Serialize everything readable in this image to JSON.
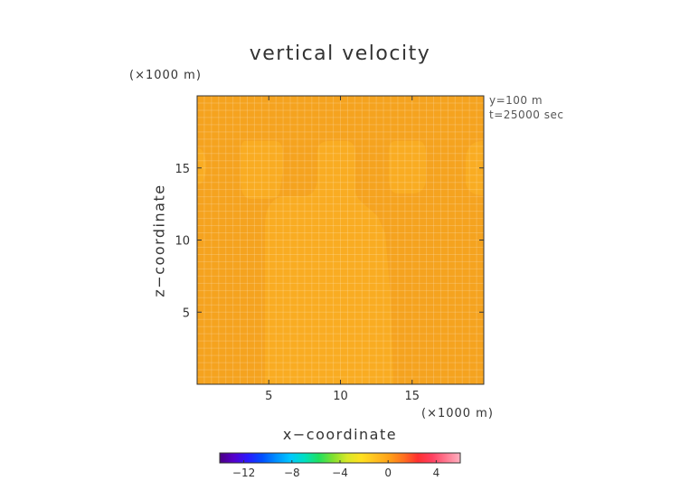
{
  "chart_data": {
    "type": "heatmap",
    "title": "vertical velocity",
    "xlabel": "x−coordinate",
    "ylabel": "z−coordinate",
    "x_scale_note": "(×1000 m)",
    "y_scale_note": "(×1000 m)",
    "info_lines": [
      "y=100 m",
      "t=25000 sec"
    ],
    "xlim": [
      0,
      20
    ],
    "ylim": [
      0,
      20
    ],
    "x_ticks": [
      5,
      10,
      15
    ],
    "x_tick_labels": [
      "5",
      "10",
      "15"
    ],
    "y_ticks": [
      5,
      10,
      15
    ],
    "y_tick_labels": [
      "5",
      "10",
      "15"
    ],
    "field": {
      "background_value": 0.0,
      "background_color": "#F5A31F",
      "anomaly_value": 0.5,
      "anomaly_color": "#F9AC22",
      "grid_on": true
    },
    "colorbar": {
      "range": [
        -14,
        6
      ],
      "tick_values": [
        -12,
        -8,
        -4,
        0,
        4
      ],
      "tick_labels": [
        "−12",
        "−8",
        "−4",
        "0",
        "4"
      ],
      "colors": [
        "#4B0082",
        "#5500CC",
        "#2A1AFF",
        "#0050FF",
        "#0090FF",
        "#00C8FF",
        "#00E0C0",
        "#20E060",
        "#80E030",
        "#D8E828",
        "#FFE020",
        "#FFC020",
        "#FFA018",
        "#FF7020",
        "#FF3030",
        "#FF4060",
        "#FF7890",
        "#FFB0C0"
      ]
    }
  }
}
